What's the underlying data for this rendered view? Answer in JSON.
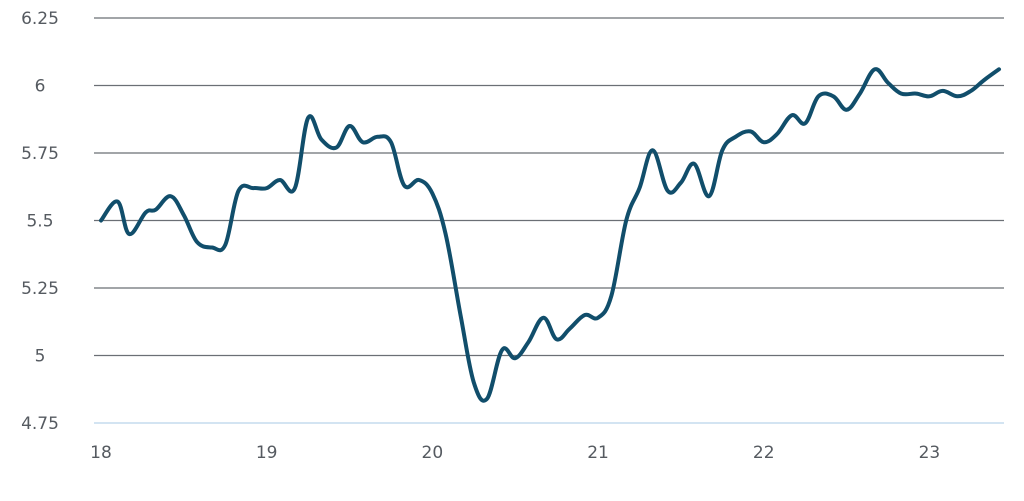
{
  "chart_data": {
    "type": "line",
    "title": "",
    "xlabel": "",
    "ylabel": "",
    "xlim": [
      18,
      23.45
    ],
    "ylim": [
      4.75,
      6.25
    ],
    "grid": true,
    "x_ticks": [
      {
        "value": 18,
        "label": "18"
      },
      {
        "value": 19,
        "label": "19"
      },
      {
        "value": 20,
        "label": "20"
      },
      {
        "value": 21,
        "label": "21"
      },
      {
        "value": 22,
        "label": "22"
      },
      {
        "value": 23,
        "label": "23"
      }
    ],
    "y_ticks": [
      {
        "value": 6.25,
        "label": "6.25"
      },
      {
        "value": 6,
        "label": "6"
      },
      {
        "value": 5.75,
        "label": "5.75"
      },
      {
        "value": 5.5,
        "label": "5.5"
      },
      {
        "value": 5.25,
        "label": "5.25"
      },
      {
        "value": 5,
        "label": "5"
      },
      {
        "value": 4.75,
        "label": "4.75"
      }
    ],
    "series": [
      {
        "color": "#114e6b",
        "points": [
          [
            18.0,
            5.5
          ],
          [
            18.1,
            5.57
          ],
          [
            18.17,
            5.45
          ],
          [
            18.27,
            5.53
          ],
          [
            18.33,
            5.54
          ],
          [
            18.42,
            5.59
          ],
          [
            18.5,
            5.52
          ],
          [
            18.58,
            5.42
          ],
          [
            18.67,
            5.4
          ],
          [
            18.75,
            5.41
          ],
          [
            18.83,
            5.61
          ],
          [
            18.92,
            5.62
          ],
          [
            19.0,
            5.62
          ],
          [
            19.08,
            5.65
          ],
          [
            19.17,
            5.62
          ],
          [
            19.25,
            5.88
          ],
          [
            19.33,
            5.8
          ],
          [
            19.42,
            5.77
          ],
          [
            19.5,
            5.85
          ],
          [
            19.58,
            5.79
          ],
          [
            19.67,
            5.81
          ],
          [
            19.75,
            5.79
          ],
          [
            19.83,
            5.63
          ],
          [
            19.92,
            5.65
          ],
          [
            20.0,
            5.6
          ],
          [
            20.08,
            5.45
          ],
          [
            20.17,
            5.15
          ],
          [
            20.25,
            4.9
          ],
          [
            20.33,
            4.84
          ],
          [
            20.42,
            5.02
          ],
          [
            20.5,
            4.99
          ],
          [
            20.58,
            5.05
          ],
          [
            20.67,
            5.14
          ],
          [
            20.75,
            5.06
          ],
          [
            20.83,
            5.1
          ],
          [
            20.92,
            5.15
          ],
          [
            21.0,
            5.14
          ],
          [
            21.08,
            5.22
          ],
          [
            21.17,
            5.5
          ],
          [
            21.25,
            5.62
          ],
          [
            21.33,
            5.76
          ],
          [
            21.42,
            5.61
          ],
          [
            21.5,
            5.64
          ],
          [
            21.58,
            5.71
          ],
          [
            21.67,
            5.59
          ],
          [
            21.75,
            5.76
          ],
          [
            21.83,
            5.81
          ],
          [
            21.92,
            5.83
          ],
          [
            22.0,
            5.79
          ],
          [
            22.08,
            5.82
          ],
          [
            22.17,
            5.89
          ],
          [
            22.25,
            5.86
          ],
          [
            22.33,
            5.96
          ],
          [
            22.42,
            5.96
          ],
          [
            22.5,
            5.91
          ],
          [
            22.58,
            5.97
          ],
          [
            22.67,
            6.06
          ],
          [
            22.75,
            6.01
          ],
          [
            22.83,
            5.97
          ],
          [
            22.92,
            5.97
          ],
          [
            23.0,
            5.96
          ],
          [
            23.08,
            5.98
          ],
          [
            23.17,
            5.96
          ],
          [
            23.25,
            5.98
          ],
          [
            23.33,
            6.02
          ],
          [
            23.42,
            6.06
          ]
        ]
      }
    ]
  }
}
